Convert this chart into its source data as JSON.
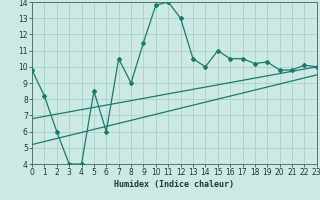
{
  "xlabel": "Humidex (Indice chaleur)",
  "bg_color": "#cce9e4",
  "grid_color": "#aed4ce",
  "line_color": "#1a7a6e",
  "xlim": [
    0,
    23
  ],
  "ylim": [
    4,
    14
  ],
  "xticks": [
    0,
    1,
    2,
    3,
    4,
    5,
    6,
    7,
    8,
    9,
    10,
    11,
    12,
    13,
    14,
    15,
    16,
    17,
    18,
    19,
    20,
    21,
    22,
    23
  ],
  "yticks": [
    4,
    5,
    6,
    7,
    8,
    9,
    10,
    11,
    12,
    13,
    14
  ],
  "line1_x": [
    0,
    1,
    2,
    3,
    4,
    5,
    6,
    7,
    8,
    9,
    10,
    11,
    12,
    13,
    14,
    15,
    16,
    17,
    18,
    19,
    20,
    21,
    22,
    23
  ],
  "line1_y": [
    9.8,
    8.2,
    6.0,
    4.0,
    4.0,
    8.5,
    6.0,
    10.5,
    9.0,
    11.5,
    13.8,
    14.0,
    13.0,
    10.5,
    10.0,
    11.0,
    10.5,
    10.5,
    10.2,
    10.3,
    9.8,
    9.8,
    10.1,
    10.0
  ],
  "line2_x": [
    0,
    23
  ],
  "line2_y": [
    6.8,
    10.0
  ],
  "line3_x": [
    0,
    23
  ],
  "line3_y": [
    5.2,
    9.5
  ]
}
